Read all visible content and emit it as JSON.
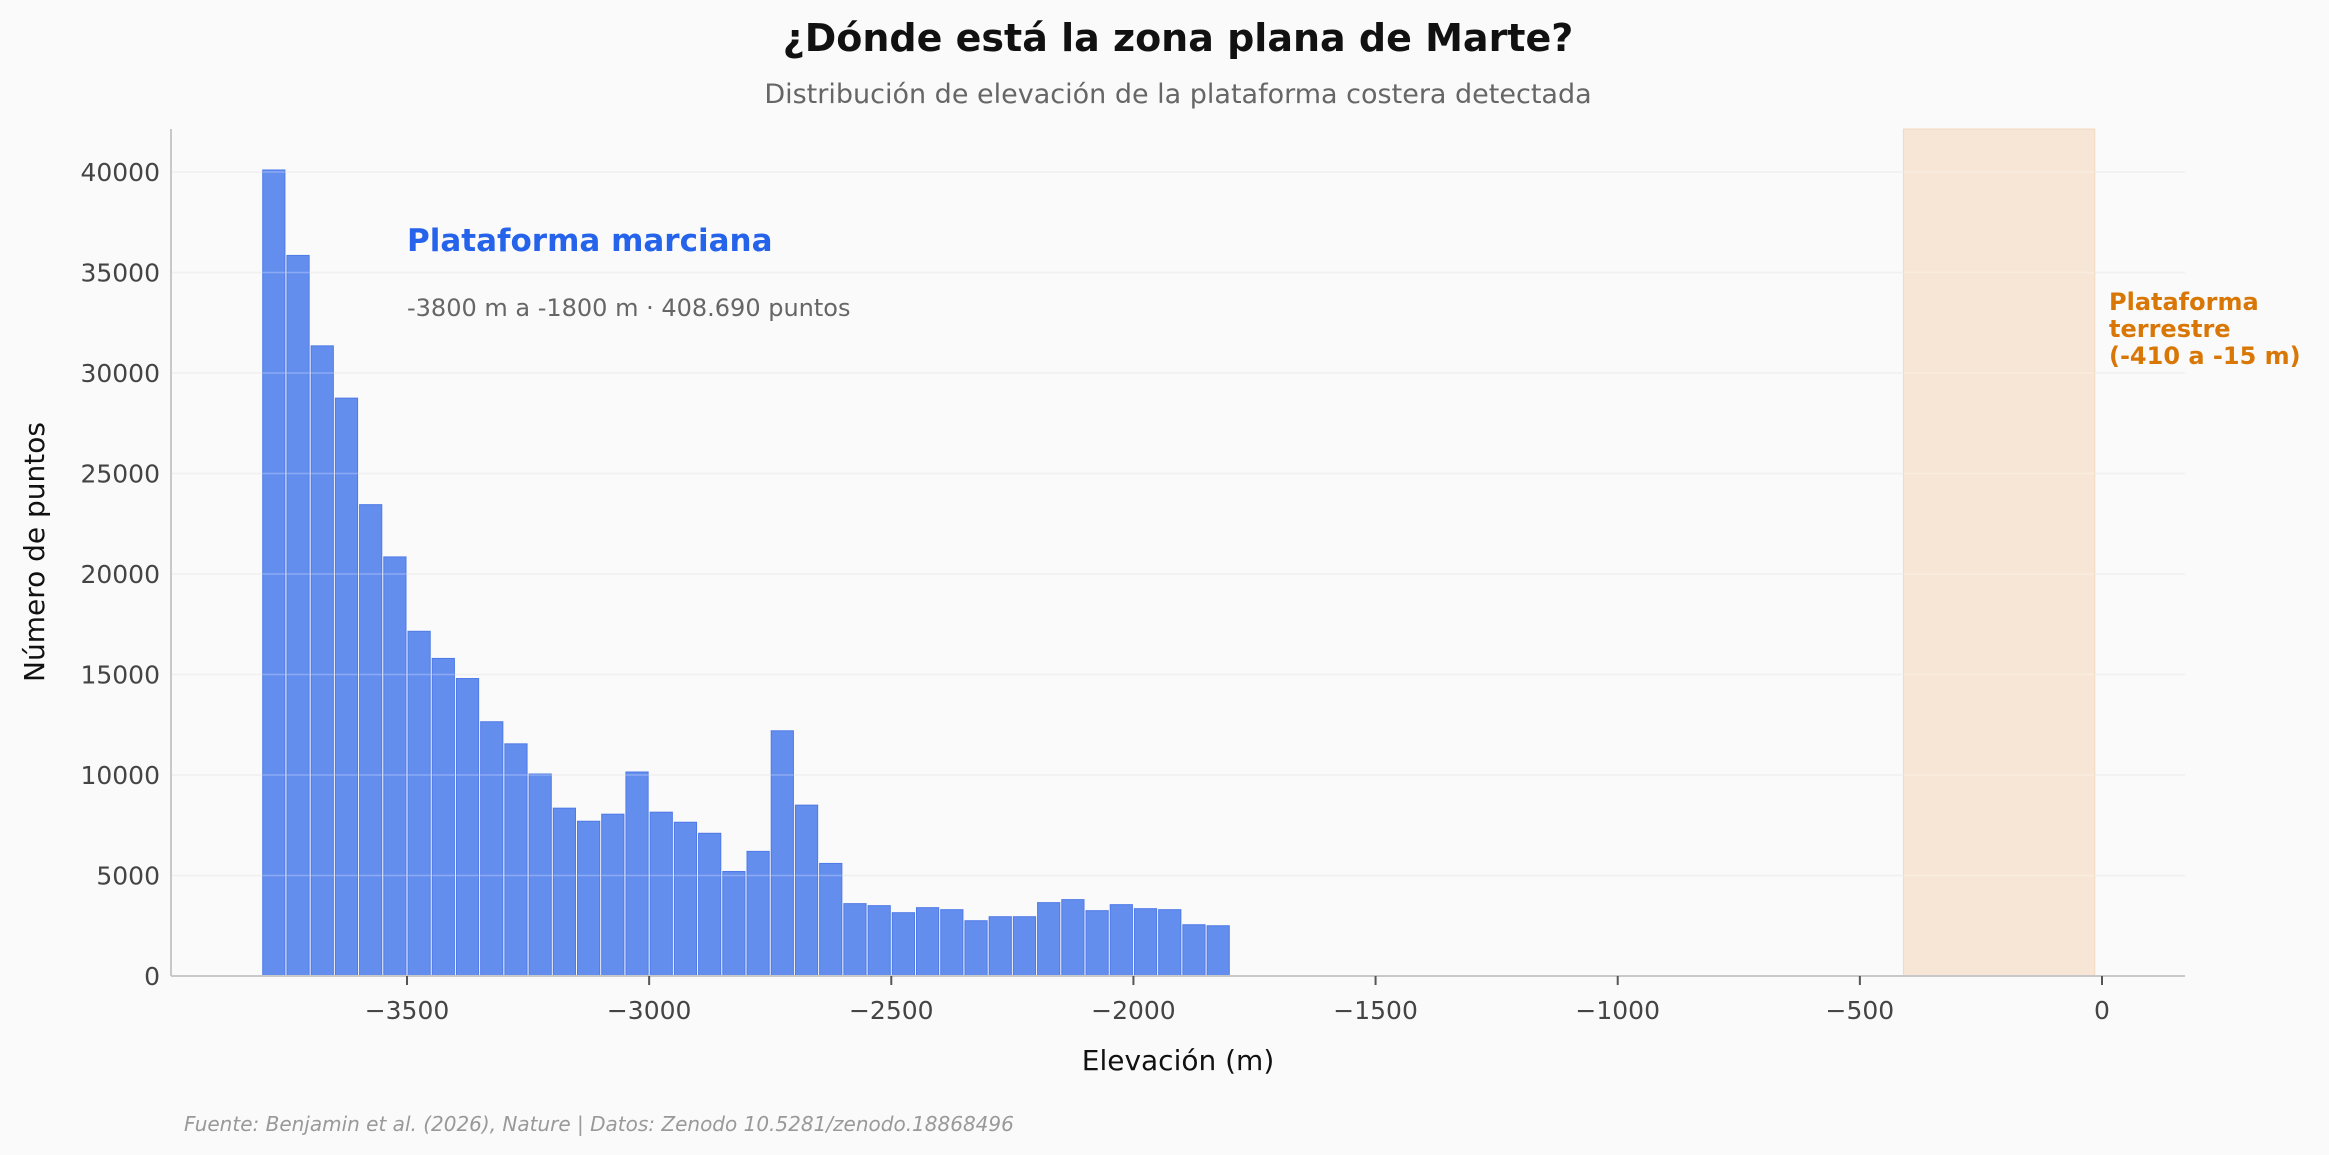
{
  "chart_data": {
    "type": "bar",
    "title": "¿Dónde está la zona plana de Marte?",
    "subtitle": "Distribución de elevación de la plataforma costera detectada",
    "xlabel": "Elevación (m)",
    "ylabel": "Número de puntos",
    "xlim": [
      -3950,
      160
    ],
    "ylim": [
      0,
      42000
    ],
    "grid": "y",
    "bin_width": 50,
    "bin_start": -3800,
    "values": [
      40100,
      35850,
      31350,
      28750,
      23450,
      20850,
      17150,
      15800,
      14800,
      12650,
      11550,
      10050,
      8350,
      7700,
      8050,
      10150,
      8150,
      7650,
      7100,
      5200,
      6200,
      12200,
      8500,
      5600,
      3600,
      3500,
      3150,
      3400,
      3300,
      2750,
      2950,
      2950,
      3650,
      3800,
      3250,
      3550,
      3350,
      3300,
      2550,
      2500
    ],
    "x_ticks": [
      -3500,
      -3000,
      -2500,
      -2000,
      -1500,
      -1000,
      -500,
      0
    ],
    "x_tick_labels": [
      "−3500",
      "−3000",
      "−2500",
      "−2000",
      "−1500",
      "−1000",
      "−500",
      "0"
    ],
    "y_ticks": [
      0,
      5000,
      10000,
      15000,
      20000,
      25000,
      30000,
      35000,
      40000
    ],
    "y_tick_labels": [
      "0",
      "5000",
      "10000",
      "15000",
      "20000",
      "25000",
      "30000",
      "35000",
      "40000"
    ],
    "annotations": {
      "mars_title": "Plataforma marciana",
      "mars_detail": "-3800 m a -1800 m · 408.690 puntos",
      "earth_label_lines": [
        "Plataforma",
        "terrestre",
        "(-410 a -15 m)"
      ]
    },
    "earth_band": [
      -410,
      -15
    ],
    "source": "Fuente: Benjamin et al. (2026), Nature | Datos: Zenodo 10.5281/zenodo.18868496",
    "colors": {
      "bar": "#648eee",
      "bar_edge": "#4f7ae6",
      "mars_text": "#2563eb",
      "earth_text": "#d97706",
      "earth_band": "#f7e6d5"
    }
  }
}
